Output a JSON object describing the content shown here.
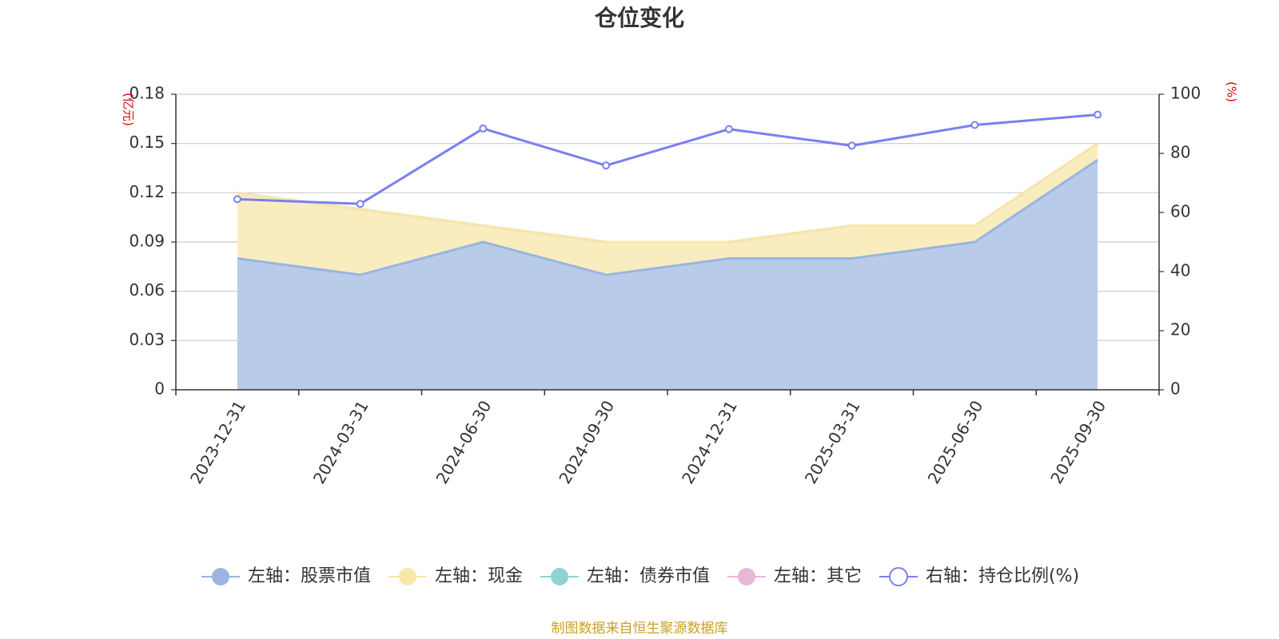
{
  "chart_data": {
    "type": "area",
    "title": "仓位变化",
    "categories": [
      "2023-12-31",
      "2024-03-31",
      "2024-06-30",
      "2024-09-30",
      "2024-12-31",
      "2025-03-31",
      "2025-06-30",
      "2025-09-30"
    ],
    "left_axis": {
      "unit_label": "(亿元)",
      "ylim": [
        0,
        0.18
      ],
      "ticks": [
        0,
        0.03,
        0.06,
        0.09,
        0.12,
        0.15,
        0.18
      ],
      "tick_labels": [
        "0",
        "0.03",
        "0.06",
        "0.09",
        "0.12",
        "0.15",
        "0.18"
      ]
    },
    "right_axis": {
      "unit_label": "(%)",
      "ylim": [
        0,
        100
      ],
      "ticks": [
        0,
        20,
        40,
        60,
        80,
        100
      ],
      "tick_labels": [
        "0",
        "20",
        "40",
        "60",
        "80",
        "100"
      ]
    },
    "series": [
      {
        "name": "左轴：股票市值",
        "axis": "left",
        "kind": "stacked-area",
        "color": "#9ab5e0",
        "fill": "#b8cce9",
        "values": [
          0.08,
          0.07,
          0.09,
          0.07,
          0.08,
          0.08,
          0.09,
          0.14
        ]
      },
      {
        "name": "左轴：现金",
        "axis": "left",
        "kind": "stacked-area",
        "color": "#f9e7a8",
        "fill": "#f9edc0",
        "values": [
          0.04,
          0.04,
          0.01,
          0.02,
          0.01,
          0.02,
          0.01,
          0.01
        ]
      },
      {
        "name": "左轴：债券市值",
        "axis": "left",
        "kind": "stacked-area",
        "color": "#8fd3d3",
        "fill": "#bfe6e6",
        "values": [
          0,
          0,
          0,
          0,
          0,
          0,
          0,
          0
        ]
      },
      {
        "name": "左轴：其它",
        "axis": "left",
        "kind": "stacked-area",
        "color": "#e8b7d8",
        "fill": "#f2d5e8",
        "values": [
          0,
          0,
          0,
          0,
          0,
          0,
          0,
          0
        ]
      },
      {
        "name": "右轴：持仓比例(%)",
        "axis": "right",
        "kind": "line",
        "color": "#7b7ff0",
        "values": [
          64.5,
          62.9,
          88.4,
          75.9,
          88.2,
          82.6,
          89.6,
          93.1
        ]
      }
    ],
    "legend_position": "bottom",
    "grid": true
  },
  "source_note": "制图数据来自恒生聚源数据库",
  "colors": {
    "left_unit": "#e00000",
    "right_unit": "#e00000",
    "source": "#c8a028",
    "grid": "#cccccc",
    "axis": "#333333"
  }
}
